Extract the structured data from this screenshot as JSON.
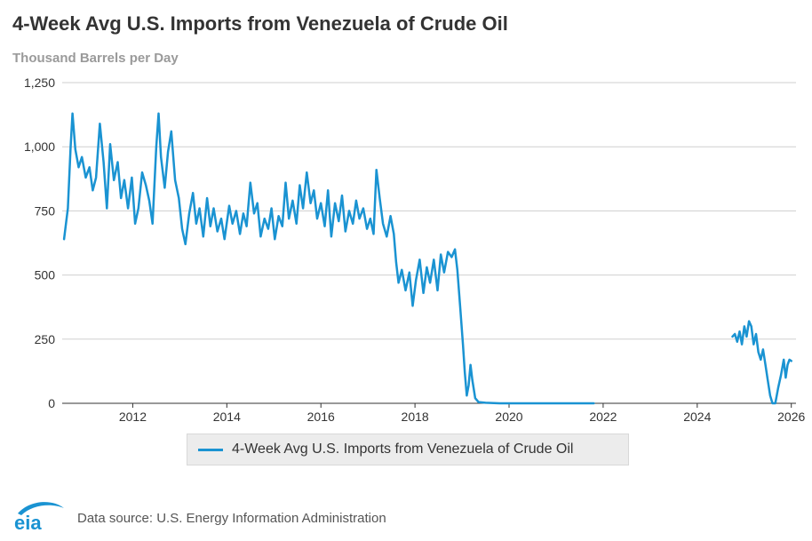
{
  "header": {
    "title": "4-Week Avg U.S. Imports from Venezuela of Crude Oil",
    "subtitle": "Thousand Barrels per Day"
  },
  "legend": {
    "label": "4-Week Avg U.S. Imports from Venezuela of Crude Oil"
  },
  "footer": {
    "logo_text": "eia",
    "source": "Data source: U.S. Energy Information Administration"
  },
  "colors": {
    "series": "#1a93d2",
    "grid": "#cfcfcf",
    "axis": "#333333",
    "logo": "#1a93d2"
  },
  "chart_data": {
    "type": "line",
    "title": "4-Week Avg U.S. Imports from Venezuela of Crude Oil",
    "ylabel": "Thousand Barrels per Day",
    "xlabel": "",
    "ylim": [
      0,
      1250
    ],
    "xlim": [
      2010.5,
      2026.1
    ],
    "yticks": [
      0,
      250,
      500,
      750,
      1000,
      1250
    ],
    "ytick_labels": [
      "0",
      "250",
      "500",
      "750",
      "1,000",
      "1,250"
    ],
    "xticks": [
      2012,
      2014,
      2016,
      2018,
      2020,
      2022,
      2024,
      2026
    ],
    "xtick_labels": [
      "2012",
      "2014",
      "2016",
      "2018",
      "2020",
      "2022",
      "2024",
      "2026"
    ],
    "grid": true,
    "legend_position": "bottom",
    "series": [
      {
        "name": "4-Week Avg U.S. Imports from Venezuela of Crude Oil",
        "segments": [
          [
            [
              2010.54,
              640
            ],
            [
              2010.62,
              760
            ],
            [
              2010.68,
              1000
            ],
            [
              2010.72,
              1130
            ],
            [
              2010.78,
              990
            ],
            [
              2010.85,
              920
            ],
            [
              2010.92,
              960
            ],
            [
              2011.0,
              880
            ],
            [
              2011.08,
              920
            ],
            [
              2011.15,
              830
            ],
            [
              2011.22,
              880
            ],
            [
              2011.3,
              1090
            ],
            [
              2011.38,
              940
            ],
            [
              2011.45,
              760
            ],
            [
              2011.52,
              1010
            ],
            [
              2011.6,
              870
            ],
            [
              2011.68,
              940
            ],
            [
              2011.75,
              800
            ],
            [
              2011.82,
              870
            ],
            [
              2011.9,
              760
            ],
            [
              2011.98,
              880
            ],
            [
              2012.05,
              700
            ],
            [
              2012.12,
              760
            ],
            [
              2012.2,
              900
            ],
            [
              2012.28,
              850
            ],
            [
              2012.35,
              790
            ],
            [
              2012.42,
              700
            ],
            [
              2012.5,
              1000
            ],
            [
              2012.55,
              1130
            ],
            [
              2012.6,
              960
            ],
            [
              2012.68,
              840
            ],
            [
              2012.75,
              980
            ],
            [
              2012.82,
              1060
            ],
            [
              2012.9,
              870
            ],
            [
              2012.98,
              800
            ],
            [
              2013.05,
              680
            ],
            [
              2013.12,
              620
            ],
            [
              2013.2,
              740
            ],
            [
              2013.28,
              820
            ],
            [
              2013.35,
              700
            ],
            [
              2013.42,
              760
            ],
            [
              2013.5,
              650
            ],
            [
              2013.58,
              800
            ],
            [
              2013.65,
              690
            ],
            [
              2013.72,
              760
            ],
            [
              2013.8,
              670
            ],
            [
              2013.88,
              720
            ],
            [
              2013.95,
              640
            ],
            [
              2014.05,
              770
            ],
            [
              2014.12,
              700
            ],
            [
              2014.2,
              750
            ],
            [
              2014.28,
              660
            ],
            [
              2014.35,
              740
            ],
            [
              2014.42,
              690
            ],
            [
              2014.5,
              860
            ],
            [
              2014.58,
              740
            ],
            [
              2014.65,
              780
            ],
            [
              2014.72,
              650
            ],
            [
              2014.8,
              720
            ],
            [
              2014.88,
              680
            ],
            [
              2014.95,
              760
            ],
            [
              2015.02,
              640
            ],
            [
              2015.1,
              730
            ],
            [
              2015.18,
              690
            ],
            [
              2015.25,
              860
            ],
            [
              2015.32,
              720
            ],
            [
              2015.4,
              790
            ],
            [
              2015.48,
              700
            ],
            [
              2015.55,
              850
            ],
            [
              2015.62,
              760
            ],
            [
              2015.7,
              900
            ],
            [
              2015.78,
              780
            ],
            [
              2015.85,
              830
            ],
            [
              2015.92,
              720
            ],
            [
              2016.0,
              780
            ],
            [
              2016.08,
              690
            ],
            [
              2016.15,
              830
            ],
            [
              2016.22,
              650
            ],
            [
              2016.3,
              780
            ],
            [
              2016.38,
              710
            ],
            [
              2016.45,
              810
            ],
            [
              2016.52,
              670
            ],
            [
              2016.6,
              750
            ],
            [
              2016.68,
              700
            ],
            [
              2016.75,
              790
            ],
            [
              2016.82,
              720
            ],
            [
              2016.9,
              760
            ],
            [
              2016.98,
              680
            ],
            [
              2017.05,
              720
            ],
            [
              2017.12,
              660
            ],
            [
              2017.18,
              910
            ],
            [
              2017.25,
              800
            ],
            [
              2017.32,
              700
            ],
            [
              2017.4,
              650
            ],
            [
              2017.48,
              730
            ],
            [
              2017.55,
              660
            ],
            [
              2017.6,
              550
            ],
            [
              2017.65,
              470
            ],
            [
              2017.72,
              520
            ],
            [
              2017.8,
              440
            ],
            [
              2017.88,
              510
            ],
            [
              2017.95,
              380
            ],
            [
              2018.02,
              480
            ],
            [
              2018.1,
              560
            ],
            [
              2018.18,
              430
            ],
            [
              2018.25,
              530
            ],
            [
              2018.32,
              470
            ],
            [
              2018.4,
              560
            ],
            [
              2018.48,
              440
            ],
            [
              2018.55,
              580
            ],
            [
              2018.62,
              510
            ],
            [
              2018.7,
              590
            ],
            [
              2018.78,
              570
            ],
            [
              2018.85,
              600
            ],
            [
              2018.9,
              520
            ],
            [
              2018.96,
              380
            ],
            [
              2019.02,
              230
            ],
            [
              2019.06,
              120
            ],
            [
              2019.1,
              30
            ],
            [
              2019.14,
              70
            ],
            [
              2019.18,
              150
            ],
            [
              2019.22,
              90
            ],
            [
              2019.28,
              20
            ],
            [
              2019.35,
              5
            ],
            [
              2019.5,
              2
            ],
            [
              2019.8,
              0
            ],
            [
              2020.5,
              0
            ],
            [
              2021.2,
              0
            ],
            [
              2021.8,
              0
            ]
          ],
          [
            [
              2024.75,
              260
            ],
            [
              2024.8,
              270
            ],
            [
              2024.85,
              240
            ],
            [
              2024.9,
              280
            ],
            [
              2024.95,
              230
            ],
            [
              2025.0,
              300
            ],
            [
              2025.05,
              260
            ],
            [
              2025.1,
              320
            ],
            [
              2025.15,
              300
            ],
            [
              2025.2,
              230
            ],
            [
              2025.25,
              270
            ],
            [
              2025.3,
              200
            ],
            [
              2025.35,
              170
            ],
            [
              2025.4,
              210
            ],
            [
              2025.45,
              150
            ],
            [
              2025.5,
              90
            ],
            [
              2025.55,
              30
            ],
            [
              2025.6,
              0
            ],
            [
              2025.66,
              0
            ],
            [
              2025.72,
              60
            ],
            [
              2025.78,
              110
            ],
            [
              2025.84,
              170
            ],
            [
              2025.88,
              100
            ],
            [
              2025.92,
              150
            ],
            [
              2025.96,
              170
            ],
            [
              2026.0,
              165
            ]
          ]
        ]
      }
    ]
  }
}
